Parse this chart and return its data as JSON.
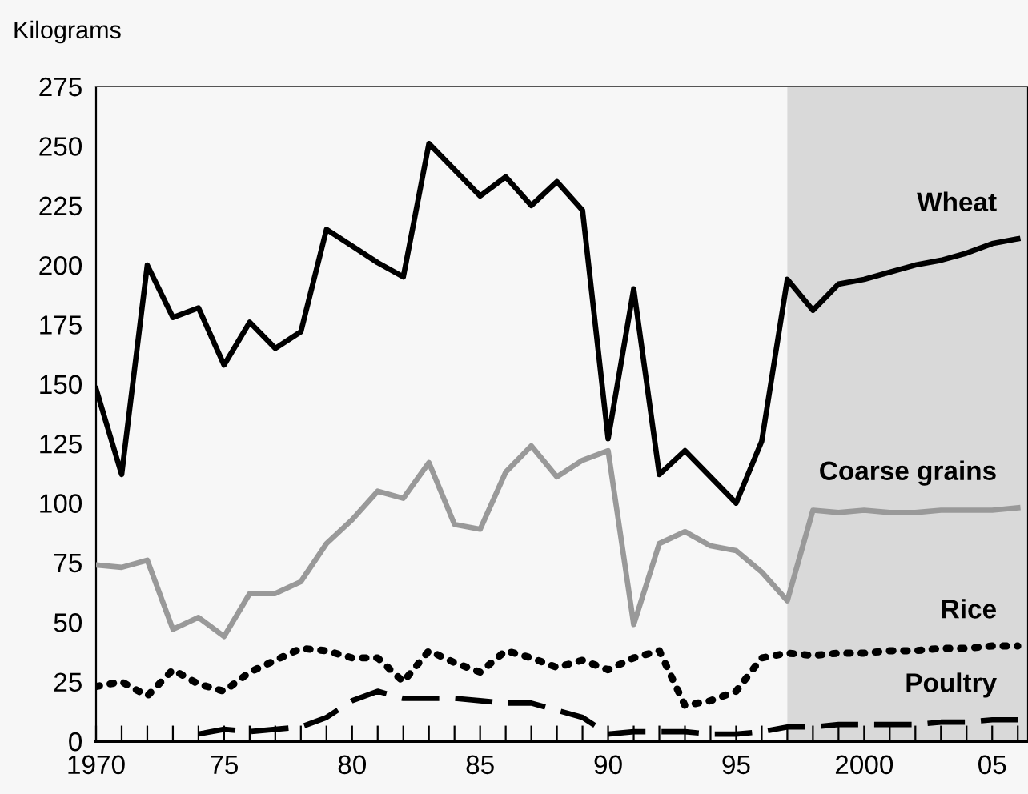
{
  "chart_data": {
    "type": "line",
    "ylabel": "Kilograms",
    "x": [
      1970,
      1971,
      1972,
      1973,
      1974,
      1975,
      1976,
      1977,
      1978,
      1979,
      1980,
      1981,
      1982,
      1983,
      1984,
      1985,
      1986,
      1987,
      1988,
      1989,
      1990,
      1991,
      1992,
      1993,
      1994,
      1995,
      1996,
      1997,
      1998,
      1999,
      2000,
      2001,
      2002,
      2003,
      2004,
      2005,
      2006
    ],
    "series": [
      {
        "name": "Wheat",
        "color": "#000000",
        "line_style": "solid",
        "values": [
          148,
          112,
          200,
          178,
          182,
          158,
          176,
          165,
          172,
          215,
          208,
          201,
          195,
          251,
          240,
          229,
          237,
          225,
          235,
          223,
          127,
          190,
          112,
          122,
          111,
          100,
          126,
          194,
          181,
          192,
          194,
          197,
          200,
          202,
          205,
          209,
          211
        ]
      },
      {
        "name": "Coarse grains",
        "color": "#999999",
        "line_style": "solid",
        "values": [
          74,
          73,
          76,
          47,
          52,
          44,
          62,
          62,
          67,
          83,
          93,
          105,
          102,
          117,
          91,
          89,
          113,
          124,
          111,
          118,
          122,
          49,
          83,
          88,
          82,
          80,
          71,
          59,
          97,
          96,
          97,
          96,
          96,
          97,
          97,
          97,
          98
        ]
      },
      {
        "name": "Rice",
        "color": "#000000",
        "line_style": "dotted",
        "values": [
          23,
          25,
          19,
          30,
          24,
          21,
          29,
          34,
          39,
          38,
          35,
          35,
          25,
          38,
          33,
          29,
          38,
          35,
          31,
          34,
          30,
          35,
          38,
          15,
          17,
          21,
          35,
          37,
          36,
          37,
          37,
          38,
          38,
          39,
          39,
          40,
          40
        ]
      },
      {
        "name": "Poultry",
        "color": "#000000",
        "line_style": "dashed",
        "values": [
          null,
          null,
          null,
          null,
          3,
          5,
          4,
          5,
          6,
          10,
          17,
          21,
          18,
          18,
          18,
          17,
          16,
          16,
          13,
          10,
          3,
          4,
          4,
          4,
          3,
          3,
          4,
          6,
          6,
          7,
          7,
          7,
          7,
          8,
          8,
          9,
          9
        ]
      }
    ],
    "xlim": [
      1970,
      2006.4
    ],
    "ylim": [
      0,
      275
    ],
    "xticks": [
      {
        "value": 1970,
        "label": "1970"
      },
      {
        "value": 1971,
        "label": null
      },
      {
        "value": 1972,
        "label": null
      },
      {
        "value": 1973,
        "label": null
      },
      {
        "value": 1974,
        "label": null
      },
      {
        "value": 1975,
        "label": "75"
      },
      {
        "value": 1976,
        "label": null
      },
      {
        "value": 1977,
        "label": null
      },
      {
        "value": 1978,
        "label": null
      },
      {
        "value": 1979,
        "label": null
      },
      {
        "value": 1980,
        "label": "80"
      },
      {
        "value": 1981,
        "label": null
      },
      {
        "value": 1982,
        "label": null
      },
      {
        "value": 1983,
        "label": null
      },
      {
        "value": 1984,
        "label": null
      },
      {
        "value": 1985,
        "label": "85"
      },
      {
        "value": 1986,
        "label": null
      },
      {
        "value": 1987,
        "label": null
      },
      {
        "value": 1988,
        "label": null
      },
      {
        "value": 1989,
        "label": null
      },
      {
        "value": 1990,
        "label": "90"
      },
      {
        "value": 1991,
        "label": null
      },
      {
        "value": 1992,
        "label": null
      },
      {
        "value": 1993,
        "label": null
      },
      {
        "value": 1994,
        "label": null
      },
      {
        "value": 1995,
        "label": "95"
      },
      {
        "value": 1996,
        "label": null
      },
      {
        "value": 1997,
        "label": null
      },
      {
        "value": 1998,
        "label": null
      },
      {
        "value": 1999,
        "label": null
      },
      {
        "value": 2000,
        "label": "2000"
      },
      {
        "value": 2001,
        "label": null
      },
      {
        "value": 2002,
        "label": null
      },
      {
        "value": 2003,
        "label": null
      },
      {
        "value": 2004,
        "label": null
      },
      {
        "value": 2005,
        "label": "05"
      },
      {
        "value": 2006,
        "label": null
      }
    ],
    "yticks": [
      0,
      25,
      50,
      75,
      100,
      125,
      150,
      175,
      200,
      225,
      250,
      275
    ],
    "bands": [
      {
        "axis": "x",
        "from": 1997,
        "to": 2006.4,
        "color": "#d9d9d9"
      }
    ],
    "grid": false,
    "legend": false
  }
}
